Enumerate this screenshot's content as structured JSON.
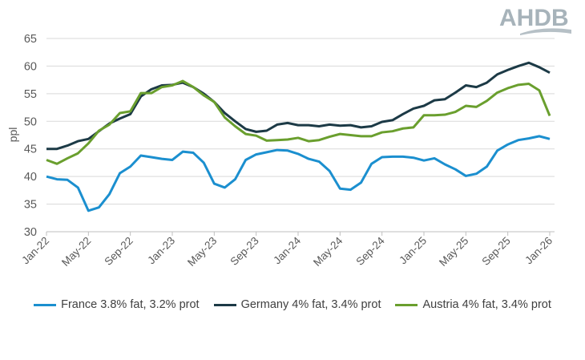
{
  "logo_text": "AHDB",
  "chart_data": {
    "type": "line",
    "title": "",
    "xlabel": "",
    "ylabel": "ppl",
    "ylim": [
      30,
      65
    ],
    "yticks": [
      30,
      35,
      40,
      45,
      50,
      55,
      60,
      65
    ],
    "grid": true,
    "legend_position": "bottom",
    "x": [
      "Jan-22",
      "Feb-22",
      "Mar-22",
      "Apr-22",
      "May-22",
      "Jun-22",
      "Jul-22",
      "Aug-22",
      "Sep-22",
      "Oct-22",
      "Nov-22",
      "Dec-22",
      "Jan-23",
      "Feb-23",
      "Mar-23",
      "Apr-23",
      "May-23",
      "Jun-23",
      "Jul-23",
      "Aug-23",
      "Sep-23",
      "Oct-23",
      "Nov-23",
      "Dec-23",
      "Jan-24",
      "Feb-24",
      "Mar-24",
      "Apr-24",
      "May-24",
      "Jun-24",
      "Jul-24",
      "Aug-24",
      "Sep-24",
      "Oct-24",
      "Nov-24",
      "Dec-24",
      "Jan-25",
      "Feb-25",
      "Mar-25",
      "Apr-25",
      "May-25",
      "Jun-25",
      "Jul-25",
      "Aug-25",
      "Sep-25",
      "Oct-25",
      "Nov-25",
      "Dec-25",
      "Jan-26"
    ],
    "xtick_labels": [
      "Jan-22",
      "May-22",
      "Sep-22",
      "Jan-23",
      "May-23",
      "Sep-23",
      "Jan-24",
      "May-24",
      "Sep-24",
      "Jan-25",
      "May-25",
      "Sep-25",
      "Jan-26"
    ],
    "series": [
      {
        "name": "France 3.8% fat, 3.2% prot",
        "color": "#1b8fcf",
        "values": [
          40.0,
          39.5,
          39.4,
          38.0,
          33.8,
          34.4,
          36.8,
          40.6,
          41.8,
          43.8,
          43.5,
          43.2,
          43.0,
          44.5,
          44.3,
          42.5,
          38.7,
          38.0,
          39.5,
          43.0,
          44.0,
          44.4,
          44.8,
          44.7,
          44.1,
          43.2,
          42.7,
          41.0,
          37.8,
          37.6,
          38.9,
          42.3,
          43.5,
          43.6,
          43.6,
          43.4,
          42.9,
          43.3,
          42.2,
          41.3,
          40.1,
          40.5,
          41.8,
          44.7,
          45.8,
          46.6,
          46.9,
          47.3,
          46.8
        ]
      },
      {
        "name": "Germany 4% fat, 3.4% prot",
        "color": "#1c3a46",
        "values": [
          45.0,
          45.0,
          45.6,
          46.4,
          46.8,
          48.2,
          49.6,
          50.5,
          51.3,
          54.5,
          55.8,
          56.5,
          56.6,
          57.0,
          56.2,
          55.0,
          53.5,
          51.5,
          50.0,
          48.6,
          48.1,
          48.3,
          49.4,
          49.7,
          49.3,
          49.3,
          49.1,
          49.4,
          49.2,
          49.3,
          48.9,
          49.1,
          49.9,
          50.2,
          51.3,
          52.3,
          52.8,
          53.8,
          54.0,
          55.2,
          56.5,
          56.2,
          57.0,
          58.5,
          59.3,
          60.0,
          60.6,
          59.8,
          58.8
        ]
      },
      {
        "name": "Austria 4% fat, 3.4% prot",
        "color": "#6a9f2e",
        "values": [
          43.0,
          42.3,
          43.3,
          44.2,
          46.0,
          48.3,
          49.4,
          51.5,
          51.8,
          55.1,
          55.1,
          56.2,
          56.5,
          57.3,
          56.2,
          54.7,
          53.5,
          50.7,
          49.1,
          47.7,
          47.4,
          46.5,
          46.6,
          46.7,
          47.0,
          46.4,
          46.6,
          47.2,
          47.7,
          47.5,
          47.3,
          47.3,
          48.0,
          48.2,
          48.7,
          48.9,
          51.1,
          51.1,
          51.2,
          51.7,
          52.8,
          52.6,
          53.7,
          55.2,
          56.0,
          56.6,
          56.8,
          55.6,
          51.0
        ]
      }
    ]
  }
}
